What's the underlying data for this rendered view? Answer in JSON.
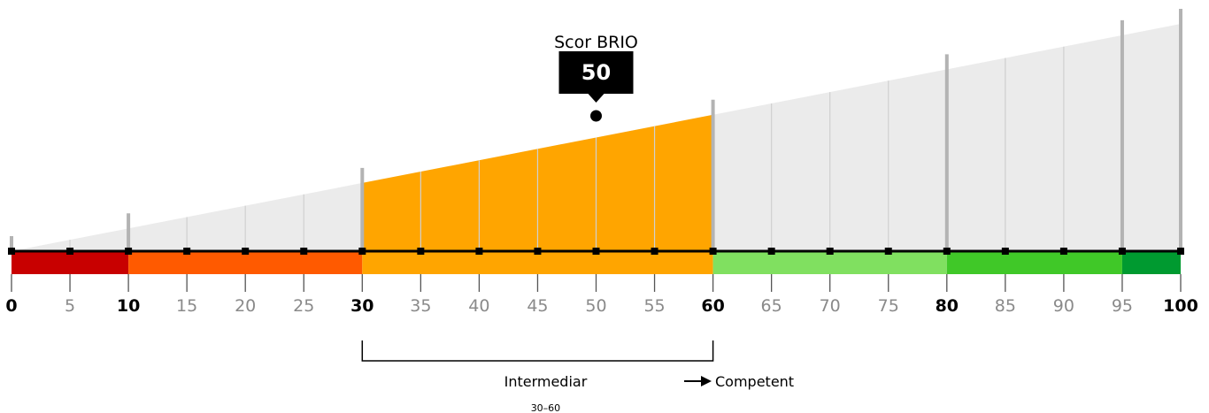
{
  "chart_data": {
    "type": "gauge",
    "xlim": [
      0,
      100
    ],
    "ticks": [
      0,
      5,
      10,
      15,
      20,
      25,
      30,
      35,
      40,
      45,
      50,
      55,
      60,
      65,
      70,
      75,
      80,
      85,
      90,
      95,
      100
    ],
    "major_ticks": [
      0,
      10,
      30,
      60,
      80,
      95,
      100
    ],
    "bold_ticks": [
      0,
      10,
      30,
      60,
      80,
      100
    ],
    "segments": [
      {
        "from": 0,
        "to": 10,
        "color": "#c80000"
      },
      {
        "from": 10,
        "to": 30,
        "color": "#ff5a00"
      },
      {
        "from": 30,
        "to": 60,
        "color": "#ffa500"
      },
      {
        "from": 60,
        "to": 80,
        "color": "#80e060"
      },
      {
        "from": 80,
        "to": 95,
        "color": "#40c828"
      },
      {
        "from": 95,
        "to": 100,
        "color": "#009a30"
      }
    ],
    "highlight": {
      "from": 30,
      "to": 60,
      "color": "#ffa500"
    },
    "marker": {
      "label": "Scor BRIO",
      "value": 50
    },
    "band": {
      "label": "Intermediar",
      "range": "30–60",
      "next_label": "Competent"
    },
    "colors": {
      "wedge": "#ebebeb",
      "gridline": "#d0d0d0",
      "major_gridline": "#b3b3b3",
      "axis": "#000000"
    }
  }
}
